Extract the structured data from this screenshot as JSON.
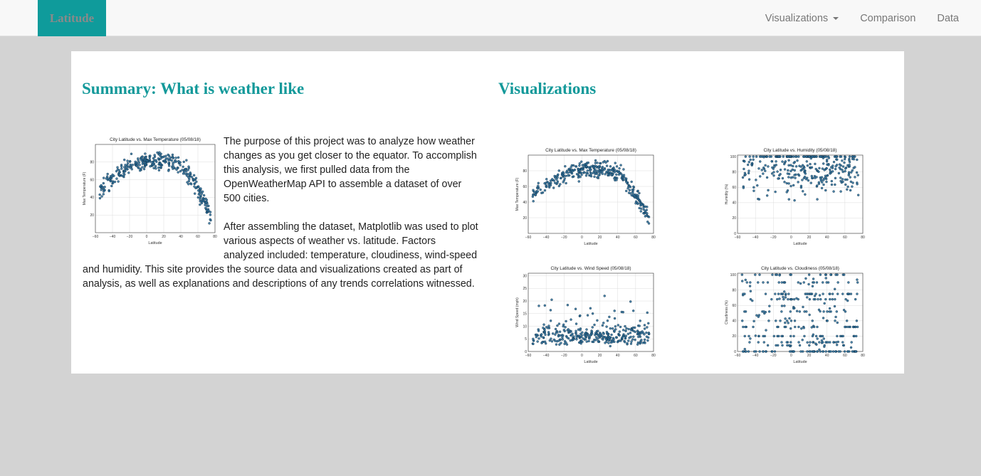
{
  "nav": {
    "brand": "Latitude",
    "links": [
      {
        "label": "Visualizations",
        "dropdown": true
      },
      {
        "label": "Comparison",
        "dropdown": false
      },
      {
        "label": "Data",
        "dropdown": false
      }
    ]
  },
  "summary": {
    "title": "Summary: What is weather like",
    "paragraphs": [
      "The purpose of this project was to analyze how weather changes as you get closer to the equator. To accomplish this analysis, we first pulled data from the OpenWeatherMap API to assemble a dataset of over 500 cities.",
      "After assembling the dataset, Matplotlib was used to plot various aspects of weather vs. latitude. Factors analyzed included: temperature, cloudiness, wind-speed and humidity. This site provides the source data and visualizations created as part of analysis, as well as explanations and descriptions of any trends correlations witnessed."
    ]
  },
  "visualizations": {
    "title": "Visualizations"
  },
  "colors": {
    "accent": "#13999a",
    "brand_bg": "#0f9b9b",
    "point": "#2b6f9a",
    "point_edge": "#0b2a40"
  },
  "chart_data": [
    {
      "id": "temp-thumb",
      "type": "scatter",
      "kind": "temp",
      "title": "City Latitude vs. Max Temperature (05/08/18)",
      "xlabel": "Latitude",
      "ylabel": "Max Temperature (F)",
      "xlim": [
        -60,
        80
      ],
      "ylim": [
        0,
        100
      ],
      "xticks": [
        -60,
        -40,
        -20,
        0,
        20,
        40,
        60,
        80
      ],
      "yticks": [
        20,
        40,
        60,
        80
      ],
      "grid": true
    },
    {
      "id": "temp",
      "type": "scatter",
      "kind": "temp",
      "title": "City Latitude vs. Max Temperature (05/08/18)",
      "xlabel": "Latitude",
      "ylabel": "Max Temperature (F)",
      "xlim": [
        -60,
        80
      ],
      "ylim": [
        0,
        100
      ],
      "xticks": [
        -60,
        -40,
        -20,
        0,
        20,
        40,
        60,
        80
      ],
      "yticks": [
        20,
        40,
        60,
        80
      ],
      "grid": true
    },
    {
      "id": "humidity",
      "type": "scatter",
      "kind": "humidity",
      "title": "City Latitude vs. Humidity (05/08/18)",
      "xlabel": "Latitude",
      "ylabel": "Humidity (%)",
      "xlim": [
        -60,
        80
      ],
      "ylim": [
        0,
        102
      ],
      "xticks": [
        -60,
        -40,
        -20,
        0,
        20,
        40,
        60,
        80
      ],
      "yticks": [
        0,
        20,
        40,
        60,
        80,
        100
      ],
      "grid": true
    },
    {
      "id": "wind",
      "type": "scatter",
      "kind": "wind",
      "title": "City Latitude vs. Wind Speed (05/08/18)",
      "xlabel": "Latitude",
      "ylabel": "Wind Speed (mph)",
      "xlim": [
        -60,
        80
      ],
      "ylim": [
        0,
        31
      ],
      "xticks": [
        -60,
        -40,
        -20,
        0,
        20,
        40,
        60,
        80
      ],
      "yticks": [
        0,
        5,
        10,
        15,
        20,
        25,
        30
      ],
      "grid": true
    },
    {
      "id": "cloudiness",
      "type": "scatter",
      "kind": "cloudiness",
      "title": "City Latitude vs. Cloudiness (05/08/18)",
      "xlabel": "Latitude",
      "ylabel": "Cloudiness (%)",
      "xlim": [
        -60,
        80
      ],
      "ylim": [
        0,
        102
      ],
      "xticks": [
        -60,
        -40,
        -20,
        0,
        20,
        40,
        60,
        80
      ],
      "yticks": [
        0,
        20,
        40,
        60,
        80,
        100
      ],
      "grid": true
    }
  ]
}
